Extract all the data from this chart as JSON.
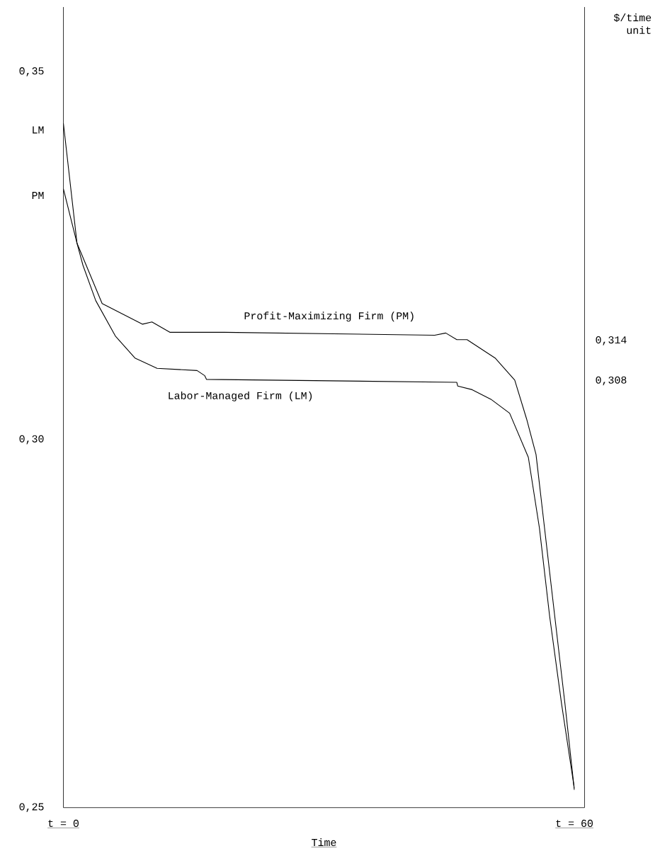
{
  "chart_data": {
    "type": "line",
    "x": [
      0,
      1.6,
      4.55,
      9.3,
      10.4,
      12.5,
      18.9,
      43.6,
      44.9,
      46.2,
      47.4,
      50.7,
      53.0,
      54.4,
      55.5,
      56.5,
      57.7,
      58.9,
      60
    ],
    "series": [
      {
        "name": "Profit-Maximizing Firm (PM)",
        "color": "#000000",
        "values": [
          0.3341,
          0.3267,
          0.3185,
          0.3157,
          0.316,
          0.3146,
          0.3146,
          0.3142,
          0.3145,
          0.3136,
          0.3136,
          0.3111,
          0.3081,
          0.3028,
          0.298,
          0.288,
          0.276,
          0.2641,
          0.2524
        ]
      },
      {
        "name": "Labor-Managed Firm (LM)",
        "color": "#000000",
        "x": [
          0,
          1.6,
          2.3,
          3.8,
          6.1,
          8.4,
          11.0,
          15.7,
          16.6,
          16.8,
          46.2,
          46.3,
          48.0,
          50.2,
          52.4,
          54.6,
          55.9,
          57.1,
          58.5,
          60
        ],
        "values": [
          0.343,
          0.3267,
          0.3237,
          0.3189,
          0.3141,
          0.3111,
          0.3097,
          0.3094,
          0.3087,
          0.3082,
          0.3078,
          0.3073,
          0.3068,
          0.3055,
          0.3036,
          0.2976,
          0.288,
          0.276,
          0.2641,
          0.2526
        ]
      }
    ],
    "xlabel": "Time",
    "y2label": "$/time unit",
    "xlim": [
      0,
      61.2
    ],
    "xticks": [
      {
        "value": 0,
        "label": "t = 0"
      },
      {
        "value": 60,
        "label": "t = 60"
      }
    ],
    "ylim": [
      0.25,
      0.3588
    ],
    "yticks": [
      {
        "value": 0.25,
        "label": "0,25"
      },
      {
        "value": 0.3,
        "label": "0,30"
      },
      {
        "value": 0.3332,
        "label": "PM"
      },
      {
        "value": 0.3421,
        "label": "LM"
      },
      {
        "value": 0.35,
        "label": "0,35"
      }
    ],
    "y2lim": [
      0.2442,
      0.3639
    ],
    "y2ticks": [
      {
        "value": 0.308,
        "label": "0,308"
      },
      {
        "value": 0.314,
        "label": "0,314"
      }
    ],
    "grid": false,
    "legend": false,
    "marker": "none",
    "line_style": "solid"
  }
}
